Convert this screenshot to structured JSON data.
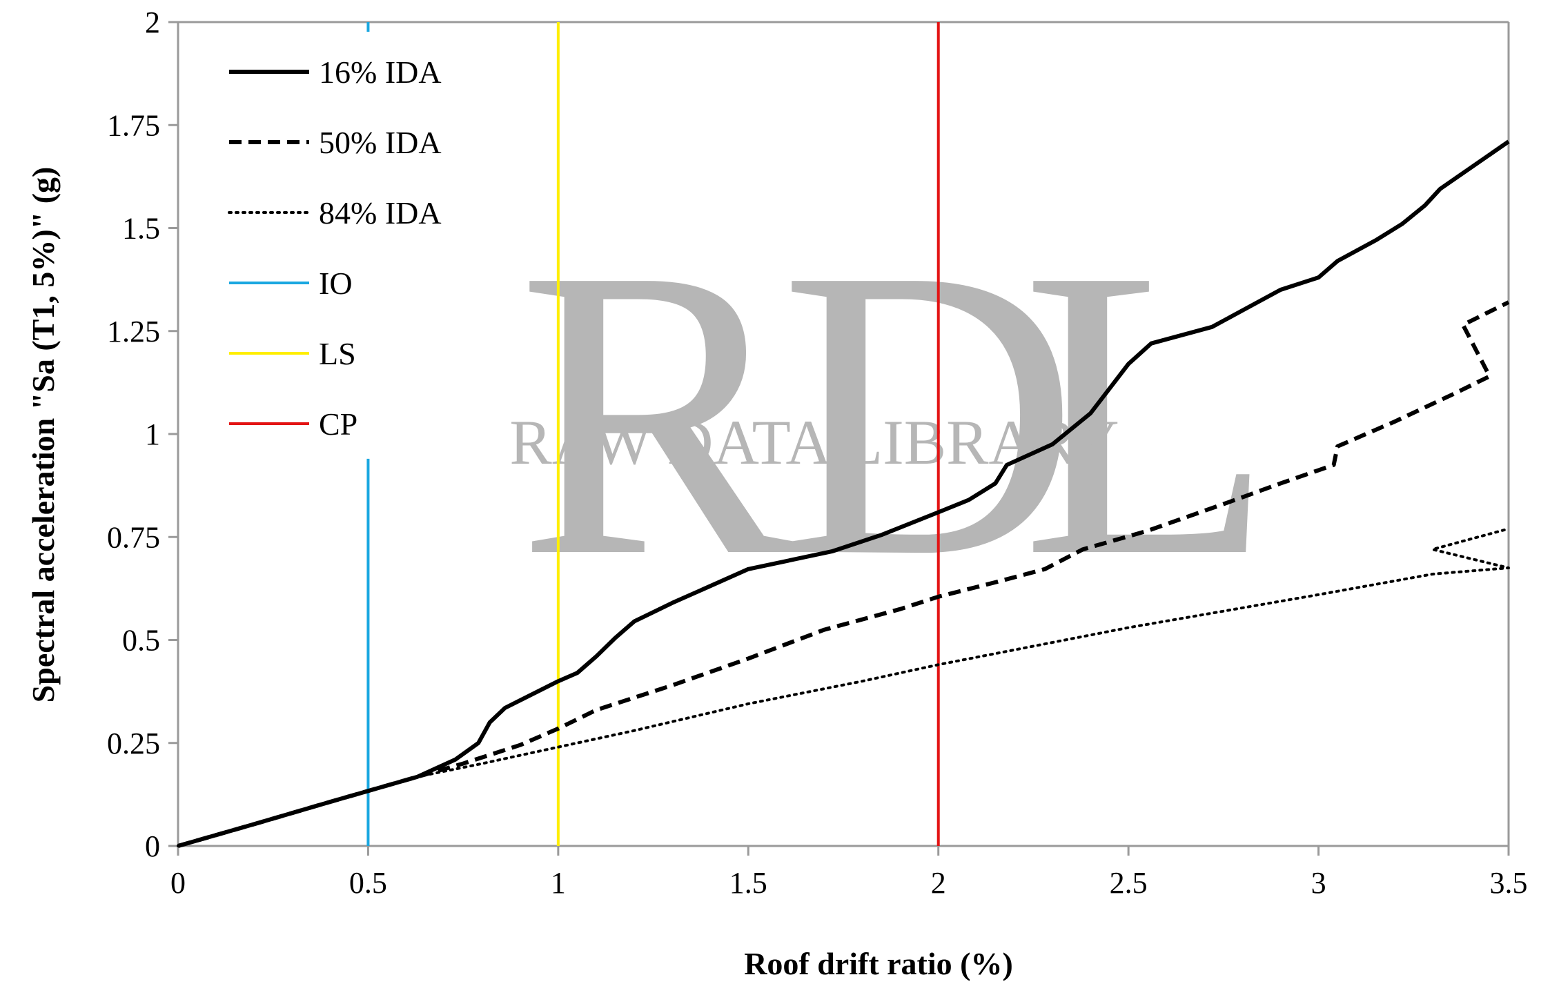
{
  "watermark": {
    "letters": "RDL",
    "text": "RAW DATA LIBRARY"
  },
  "chart_data": {
    "type": "line",
    "xlabel": "Roof drift ratio (%)",
    "ylabel": "Spectral acceleration  \"Sa (T1, 5%)\"  (g)",
    "xlim": [
      0,
      3.5
    ],
    "ylim": [
      0,
      2
    ],
    "xticks": [
      0,
      0.5,
      1,
      1.5,
      2,
      2.5,
      3,
      3.5
    ],
    "yticks": [
      0,
      0.25,
      0.5,
      0.75,
      1,
      1.25,
      1.5,
      1.75,
      2
    ],
    "xtick_labels": [
      "0",
      "0.5",
      "1",
      "1.5",
      "2",
      "2.5",
      "3",
      "3.5"
    ],
    "ytick_labels": [
      "0",
      "0.25",
      "0.5",
      "0.75",
      "1",
      "1.25",
      "1.5",
      "1.75",
      "2"
    ],
    "grid": false,
    "legend_position": "top-left inside",
    "series": [
      {
        "name": "16% IDA",
        "color": "#000000",
        "dash": "solid",
        "points": [
          [
            0,
            0
          ],
          [
            0.2,
            0.053
          ],
          [
            0.4,
            0.107
          ],
          [
            0.63,
            0.168
          ],
          [
            0.73,
            0.21
          ],
          [
            0.79,
            0.25
          ],
          [
            0.82,
            0.3
          ],
          [
            0.86,
            0.335
          ],
          [
            1.0,
            0.4
          ],
          [
            1.05,
            0.42
          ],
          [
            1.1,
            0.46
          ],
          [
            1.15,
            0.505
          ],
          [
            1.2,
            0.545
          ],
          [
            1.3,
            0.59
          ],
          [
            1.5,
            0.672
          ],
          [
            1.72,
            0.715
          ],
          [
            1.85,
            0.755
          ],
          [
            2.0,
            0.81
          ],
          [
            2.08,
            0.84
          ],
          [
            2.15,
            0.88
          ],
          [
            2.18,
            0.925
          ],
          [
            2.3,
            0.975
          ],
          [
            2.4,
            1.05
          ],
          [
            2.45,
            1.11
          ],
          [
            2.5,
            1.17
          ],
          [
            2.56,
            1.22
          ],
          [
            2.72,
            1.26
          ],
          [
            2.8,
            1.3
          ],
          [
            2.9,
            1.35
          ],
          [
            3.0,
            1.38
          ],
          [
            3.05,
            1.42
          ],
          [
            3.15,
            1.47
          ],
          [
            3.22,
            1.51
          ],
          [
            3.28,
            1.555
          ],
          [
            3.32,
            1.595
          ],
          [
            3.5,
            1.71
          ]
        ]
      },
      {
        "name": "50% IDA",
        "color": "#000000",
        "dash": "dashed",
        "points": [
          [
            0,
            0
          ],
          [
            0.2,
            0.053
          ],
          [
            0.4,
            0.107
          ],
          [
            0.63,
            0.168
          ],
          [
            0.75,
            0.2
          ],
          [
            0.9,
            0.245
          ],
          [
            1.0,
            0.285
          ],
          [
            1.1,
            0.33
          ],
          [
            1.3,
            0.39
          ],
          [
            1.5,
            0.455
          ],
          [
            1.7,
            0.525
          ],
          [
            1.9,
            0.575
          ],
          [
            2.0,
            0.605
          ],
          [
            2.15,
            0.64
          ],
          [
            2.28,
            0.672
          ],
          [
            2.38,
            0.72
          ],
          [
            2.55,
            0.765
          ],
          [
            2.75,
            0.83
          ],
          [
            2.9,
            0.88
          ],
          [
            3.04,
            0.925
          ],
          [
            3.05,
            0.97
          ],
          [
            3.2,
            1.03
          ],
          [
            3.35,
            1.095
          ],
          [
            3.45,
            1.14
          ],
          [
            3.38,
            1.265
          ],
          [
            3.5,
            1.32
          ]
        ]
      },
      {
        "name": "84% IDA",
        "color": "#000000",
        "dash": "dotted",
        "points": [
          [
            0,
            0
          ],
          [
            0.2,
            0.053
          ],
          [
            0.4,
            0.107
          ],
          [
            0.63,
            0.168
          ],
          [
            0.8,
            0.2
          ],
          [
            1.0,
            0.24
          ],
          [
            1.2,
            0.28
          ],
          [
            1.5,
            0.345
          ],
          [
            1.8,
            0.4
          ],
          [
            2.0,
            0.44
          ],
          [
            2.5,
            0.53
          ],
          [
            3.0,
            0.61
          ],
          [
            3.3,
            0.66
          ],
          [
            3.5,
            0.675
          ],
          [
            3.3,
            0.72
          ],
          [
            3.5,
            0.77
          ]
        ]
      },
      {
        "name": "IO",
        "color": "#1aa7e0",
        "dash": "solid",
        "vline_x": 0.5
      },
      {
        "name": "LS",
        "color": "#ffee00",
        "dash": "solid",
        "vline_x": 1
      },
      {
        "name": "CP",
        "color": "#e31313",
        "dash": "solid",
        "vline_x": 2
      }
    ]
  }
}
